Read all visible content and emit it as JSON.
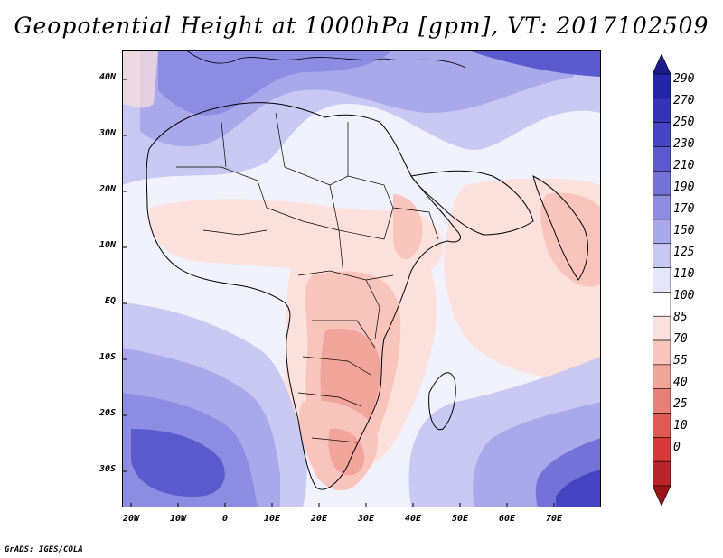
{
  "title": "Geopotential Height at 1000hPa [gpm], VT: 2017102509",
  "credit": "GrADS: IGES/COLA",
  "lat_labels": [
    "40N",
    "30N",
    "20N",
    "10N",
    "EQ",
    "10S",
    "20S",
    "30S"
  ],
  "lon_labels": [
    "20W",
    "10W",
    "0",
    "10E",
    "20E",
    "30E",
    "40E",
    "50E",
    "60E",
    "70E"
  ],
  "colorbar": {
    "levels": [
      "290",
      "270",
      "250",
      "230",
      "210",
      "190",
      "170",
      "150",
      "125",
      "110",
      "100",
      "85",
      "70",
      "55",
      "40",
      "25",
      "10",
      "0"
    ],
    "colors": [
      "#1c1c8c",
      "#2424a8",
      "#3434b8",
      "#4545c4",
      "#5a5ace",
      "#7272d8",
      "#8c8ce2",
      "#a8a8ea",
      "#c8c8f2",
      "#e6e6fa",
      "#ffffff",
      "#fce0dc",
      "#f8c4bc",
      "#f0a49a",
      "#e88078",
      "#e05a55",
      "#d63a38",
      "#b82428",
      "#9c1418"
    ]
  }
}
